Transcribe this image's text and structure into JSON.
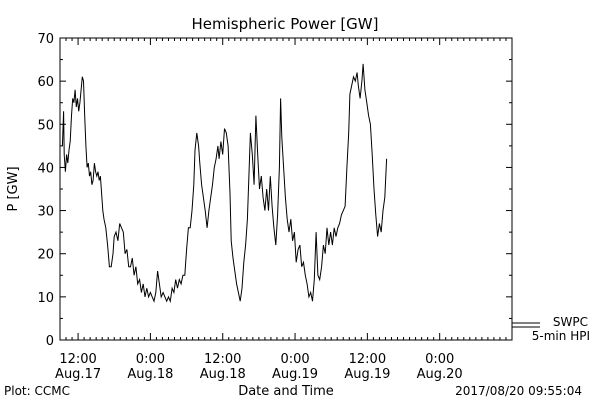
{
  "chart_data": {
    "type": "line",
    "title": "Hemispheric Power [GW]",
    "xlabel": "Date and Time",
    "ylabel": "P [GW]",
    "ylim": [
      0,
      70
    ],
    "yticks": [
      0,
      10,
      20,
      30,
      40,
      50,
      60,
      70
    ],
    "xlim_hours": [
      -3,
      72
    ],
    "xticks": [
      {
        "hour": 0,
        "time": "12:00",
        "date": "Aug.17"
      },
      {
        "hour": 12,
        "time": "0:00",
        "date": "Aug.18"
      },
      {
        "hour": 24,
        "time": "12:00",
        "date": "Aug.18"
      },
      {
        "hour": 36,
        "time": "0:00",
        "date": "Aug.19"
      },
      {
        "hour": 48,
        "time": "12:00",
        "date": "Aug.19"
      },
      {
        "hour": 60,
        "time": "0:00",
        "date": "Aug.20"
      }
    ],
    "grid": false,
    "legend": [
      "SWPC",
      "5-min HPI"
    ],
    "footer_left": "Plot: CCMC",
    "footer_right": "2017/08/20 09:55:04",
    "series": [
      {
        "color": "#000000",
        "points": [
          [
            -2.6,
            45
          ],
          [
            -2.4,
            53
          ],
          [
            -2.3,
            43
          ],
          [
            -2.1,
            39
          ],
          [
            -1.9,
            43
          ],
          [
            -1.7,
            41
          ],
          [
            -1.5,
            44
          ],
          [
            -1.3,
            46
          ],
          [
            -1.1,
            52
          ],
          [
            -0.9,
            56
          ],
          [
            -0.7,
            55
          ],
          [
            -0.5,
            58
          ],
          [
            -0.3,
            54
          ],
          [
            -0.1,
            56
          ],
          [
            0.1,
            53
          ],
          [
            0.3,
            55
          ],
          [
            0.5,
            58
          ],
          [
            0.7,
            61
          ],
          [
            0.9,
            60
          ],
          [
            1.1,
            52
          ],
          [
            1.3,
            45
          ],
          [
            1.5,
            40
          ],
          [
            1.7,
            41
          ],
          [
            1.9,
            38
          ],
          [
            2.1,
            39
          ],
          [
            2.3,
            36
          ],
          [
            2.5,
            37
          ],
          [
            2.7,
            41
          ],
          [
            2.9,
            39
          ],
          [
            3.1,
            38
          ],
          [
            3.3,
            39
          ],
          [
            3.5,
            37
          ],
          [
            3.7,
            38
          ],
          [
            3.9,
            34
          ],
          [
            4.1,
            30
          ],
          [
            4.3,
            28
          ],
          [
            4.6,
            26
          ],
          [
            4.9,
            22
          ],
          [
            5.2,
            17
          ],
          [
            5.5,
            17
          ],
          [
            5.8,
            20
          ],
          [
            6.0,
            24
          ],
          [
            6.3,
            25
          ],
          [
            6.6,
            23
          ],
          [
            6.9,
            27
          ],
          [
            7.2,
            26
          ],
          [
            7.5,
            25
          ],
          [
            7.8,
            20
          ],
          [
            8.1,
            21
          ],
          [
            8.4,
            17
          ],
          [
            8.7,
            17
          ],
          [
            9.0,
            19
          ],
          [
            9.3,
            15
          ],
          [
            9.6,
            17
          ],
          [
            9.9,
            13
          ],
          [
            10.2,
            14
          ],
          [
            10.5,
            11
          ],
          [
            10.8,
            13
          ],
          [
            11.1,
            10
          ],
          [
            11.4,
            12
          ],
          [
            11.7,
            10
          ],
          [
            12.0,
            11
          ],
          [
            12.3,
            10
          ],
          [
            12.6,
            9
          ],
          [
            12.9,
            11
          ],
          [
            13.2,
            16
          ],
          [
            13.5,
            13
          ],
          [
            13.8,
            10
          ],
          [
            14.1,
            11
          ],
          [
            14.4,
            10
          ],
          [
            14.7,
            9
          ],
          [
            15.0,
            10
          ],
          [
            15.3,
            9
          ],
          [
            15.6,
            12
          ],
          [
            15.9,
            11
          ],
          [
            16.2,
            14
          ],
          [
            16.5,
            12
          ],
          [
            16.8,
            14
          ],
          [
            17.1,
            13
          ],
          [
            17.4,
            15
          ],
          [
            17.7,
            15
          ],
          [
            18.0,
            21
          ],
          [
            18.3,
            26
          ],
          [
            18.6,
            26
          ],
          [
            18.9,
            30
          ],
          [
            19.2,
            36
          ],
          [
            19.4,
            44
          ],
          [
            19.7,
            48
          ],
          [
            20.0,
            45
          ],
          [
            20.2,
            41
          ],
          [
            20.5,
            36
          ],
          [
            20.8,
            33
          ],
          [
            21.1,
            30
          ],
          [
            21.4,
            26
          ],
          [
            21.7,
            30
          ],
          [
            22.0,
            33
          ],
          [
            22.3,
            36
          ],
          [
            22.6,
            40
          ],
          [
            22.9,
            42
          ],
          [
            23.2,
            45
          ],
          [
            23.4,
            42
          ],
          [
            23.7,
            46
          ],
          [
            24.0,
            43
          ],
          [
            24.3,
            49
          ],
          [
            24.6,
            48
          ],
          [
            24.9,
            45
          ],
          [
            25.2,
            34
          ],
          [
            25.4,
            23
          ],
          [
            25.7,
            19
          ],
          [
            26.0,
            16
          ],
          [
            26.3,
            13
          ],
          [
            26.6,
            11
          ],
          [
            26.9,
            9
          ],
          [
            27.2,
            12
          ],
          [
            27.5,
            18
          ],
          [
            27.8,
            22
          ],
          [
            28.1,
            28
          ],
          [
            28.4,
            40
          ],
          [
            28.6,
            48
          ],
          [
            28.9,
            43
          ],
          [
            29.2,
            36
          ],
          [
            29.5,
            52
          ],
          [
            29.8,
            43
          ],
          [
            30.1,
            35
          ],
          [
            30.4,
            38
          ],
          [
            30.7,
            33
          ],
          [
            31.0,
            30
          ],
          [
            31.3,
            35
          ],
          [
            31.6,
            30
          ],
          [
            31.9,
            38
          ],
          [
            32.2,
            31
          ],
          [
            32.5,
            26
          ],
          [
            32.8,
            22
          ],
          [
            33.1,
            29
          ],
          [
            33.4,
            40
          ],
          [
            33.6,
            56
          ],
          [
            33.8,
            47
          ],
          [
            34.1,
            40
          ],
          [
            34.4,
            33
          ],
          [
            34.7,
            28
          ],
          [
            35.0,
            25
          ],
          [
            35.3,
            28
          ],
          [
            35.6,
            23
          ],
          [
            35.9,
            25
          ],
          [
            36.2,
            18
          ],
          [
            36.5,
            21
          ],
          [
            36.8,
            22
          ],
          [
            37.1,
            17
          ],
          [
            37.4,
            18
          ],
          [
            37.7,
            15
          ],
          [
            38.0,
            13
          ],
          [
            38.3,
            10
          ],
          [
            38.6,
            11
          ],
          [
            38.9,
            9
          ],
          [
            39.2,
            14
          ],
          [
            39.5,
            25
          ],
          [
            39.8,
            15
          ],
          [
            40.1,
            14
          ],
          [
            40.4,
            17
          ],
          [
            40.7,
            22
          ],
          [
            41.0,
            20
          ],
          [
            41.3,
            26
          ],
          [
            41.6,
            22
          ],
          [
            41.9,
            25
          ],
          [
            42.2,
            22
          ],
          [
            42.5,
            26
          ],
          [
            42.8,
            24
          ],
          [
            43.1,
            26
          ],
          [
            43.4,
            27
          ],
          [
            43.7,
            29
          ],
          [
            44.0,
            30
          ],
          [
            44.3,
            31
          ],
          [
            44.6,
            40
          ],
          [
            44.9,
            48
          ],
          [
            45.1,
            57
          ],
          [
            45.4,
            59
          ],
          [
            45.7,
            61
          ],
          [
            46.0,
            60
          ],
          [
            46.3,
            62
          ],
          [
            46.5,
            59
          ],
          [
            46.8,
            56
          ],
          [
            47.1,
            60
          ],
          [
            47.3,
            64
          ],
          [
            47.6,
            58
          ],
          [
            47.9,
            55
          ],
          [
            48.2,
            52
          ],
          [
            48.5,
            50
          ],
          [
            48.8,
            43
          ],
          [
            49.1,
            35
          ],
          [
            49.4,
            29
          ],
          [
            49.7,
            24
          ],
          [
            50.0,
            27
          ],
          [
            50.3,
            25
          ],
          [
            50.6,
            30
          ],
          [
            50.9,
            33
          ],
          [
            51.2,
            42
          ]
        ]
      }
    ]
  }
}
